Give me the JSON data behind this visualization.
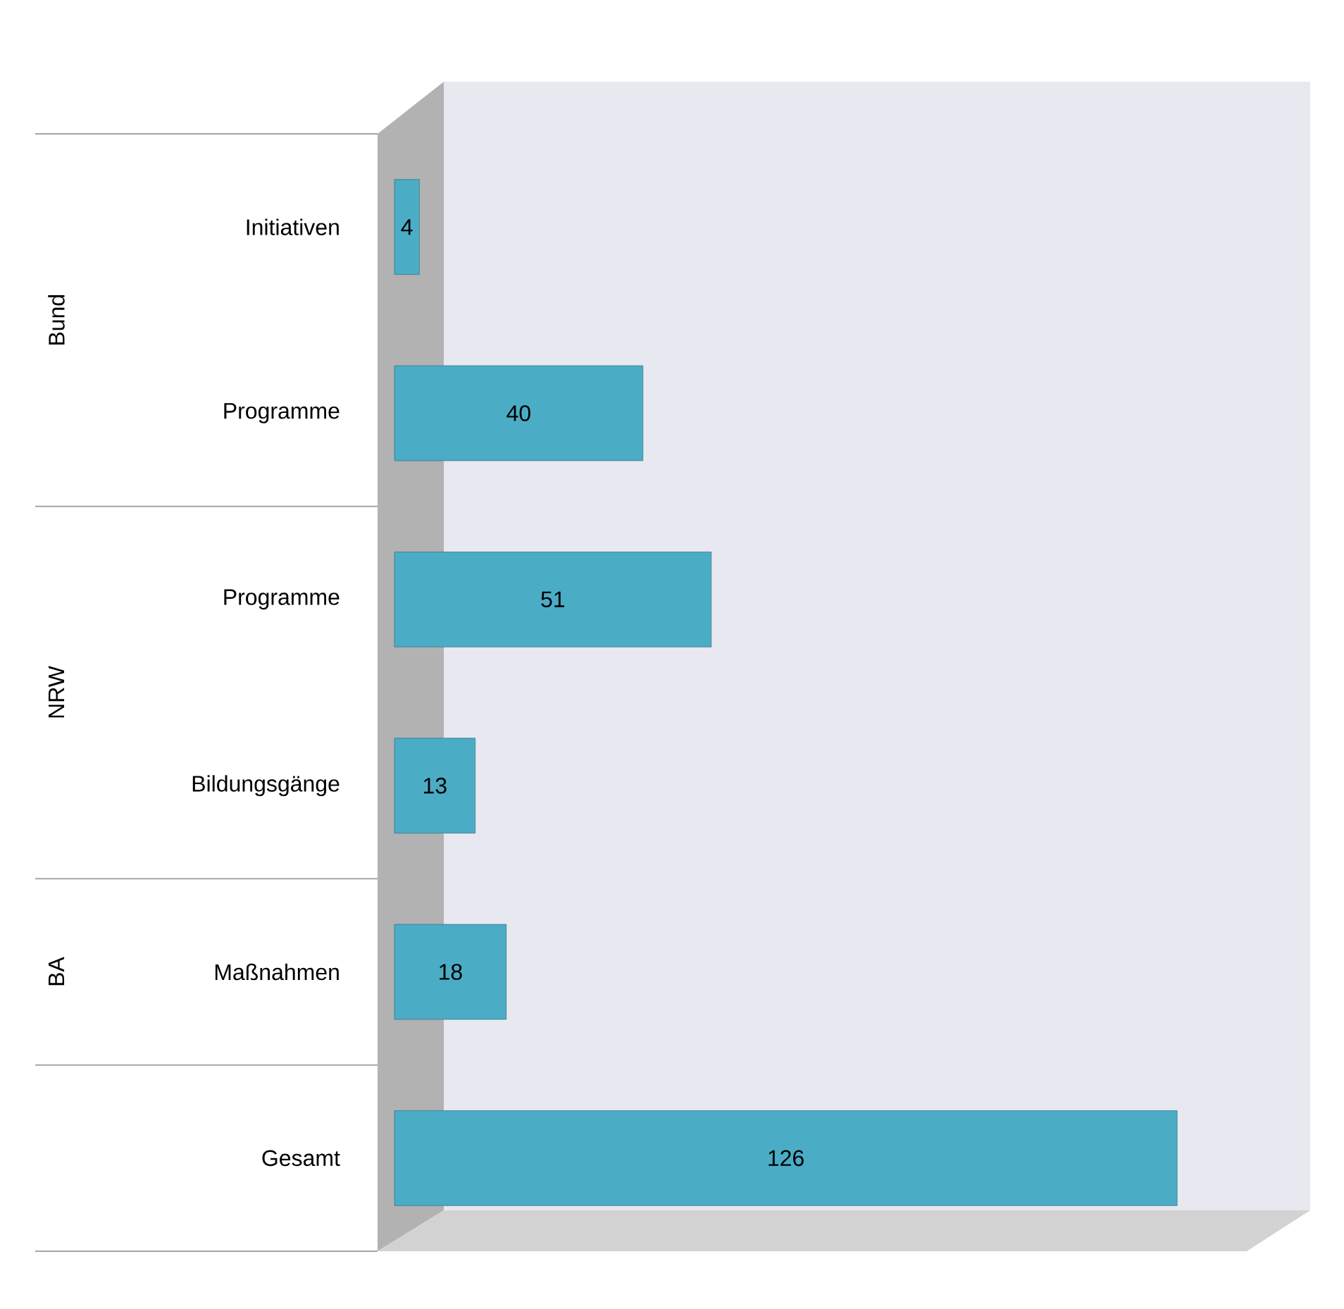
{
  "chart_data": {
    "type": "bar",
    "orientation": "horizontal",
    "categories": [
      "Initiativen",
      "Programme",
      "Programme",
      "Bildungsgänge",
      "Maßnahmen",
      "Gesamt"
    ],
    "values": [
      4,
      40,
      51,
      13,
      18,
      126
    ],
    "color": "#4bacc6",
    "data_labels": true,
    "annotations": [
      "Bund",
      "NRW",
      "BA"
    ]
  }
}
